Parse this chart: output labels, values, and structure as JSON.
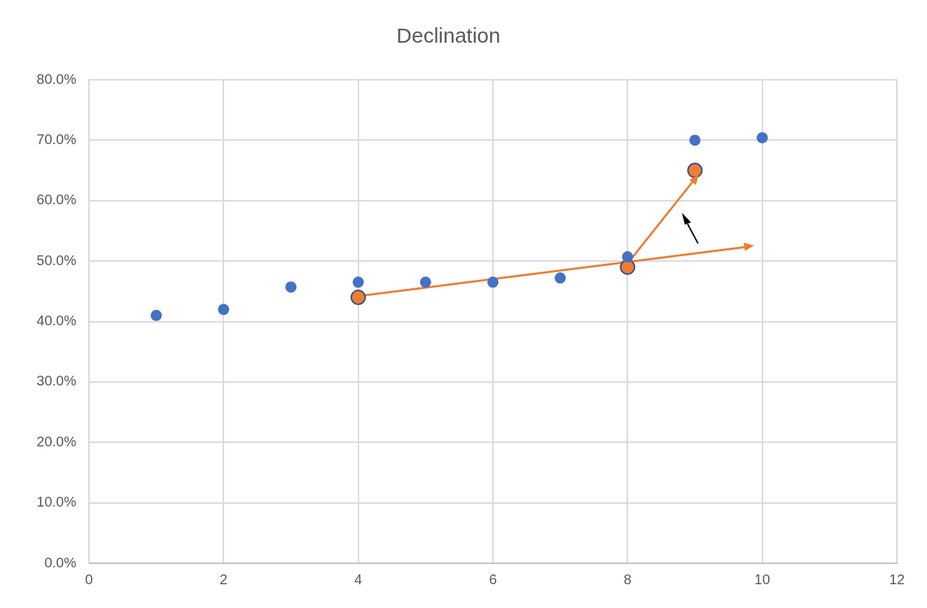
{
  "chart_data": {
    "type": "scatter",
    "title": "Declination",
    "xlim": [
      0,
      12
    ],
    "xticks": [
      0,
      2,
      4,
      6,
      8,
      10,
      12
    ],
    "ylim": [
      0,
      80
    ],
    "yticks": [
      {
        "value": 0,
        "label": "0.0%"
      },
      {
        "value": 10,
        "label": "10.0%"
      },
      {
        "value": 20,
        "label": "20.0%"
      },
      {
        "value": 30,
        "label": "30.0%"
      },
      {
        "value": 40,
        "label": "40.0%"
      },
      {
        "value": 50,
        "label": "50.0%"
      },
      {
        "value": 60,
        "label": "60.0%"
      },
      {
        "value": 70,
        "label": "70.0%"
      },
      {
        "value": 80,
        "label": "80.0%"
      }
    ],
    "grid": true,
    "legend": false,
    "marker": "circle",
    "series": [
      {
        "color": "#4472c4",
        "x": [
          1,
          2,
          3,
          4,
          5,
          6,
          7,
          8,
          9,
          10
        ],
        "values": [
          41.0,
          42.0,
          45.7,
          46.5,
          46.5,
          46.5,
          47.2,
          50.7,
          70.0,
          70.4
        ]
      },
      {
        "color": "#ed7d31",
        "x": [
          4,
          8,
          9
        ],
        "values": [
          44,
          49,
          65
        ]
      },
      {
        "type": "line",
        "color": "#ed7d31",
        "marker": "triangle",
        "x": [
          4,
          9.8
        ],
        "values": [
          44.2,
          52.4
        ]
      },
      {
        "type": "line",
        "color": "#ed7d31",
        "marker": "triangle",
        "x": [
          8,
          9
        ],
        "values": [
          49.6,
          63.6
        ]
      }
    ]
  }
}
